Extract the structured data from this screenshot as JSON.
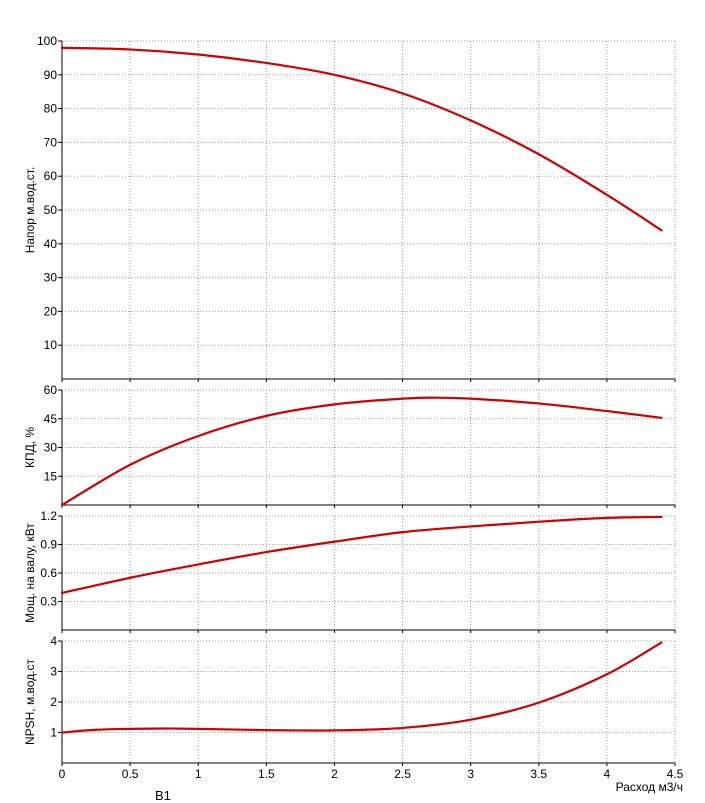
{
  "chart_data": [
    {
      "type": "line",
      "ylabel": "Напор м.вод.ст.",
      "ylim": [
        0,
        100
      ],
      "yticks": [
        10,
        20,
        30,
        40,
        50,
        60,
        70,
        80,
        90,
        100
      ],
      "xlim": [
        0,
        4.5
      ],
      "grid": true,
      "series": [
        {
          "color": "#d00000",
          "x": [
            0,
            0.5,
            1,
            1.5,
            2,
            2.5,
            3,
            3.5,
            4,
            4.4
          ],
          "y": [
            98,
            97.5,
            96,
            93.5,
            90,
            84.5,
            76.5,
            66.5,
            54.5,
            44
          ]
        }
      ]
    },
    {
      "type": "line",
      "ylabel": "КПД, %",
      "ylim": [
        0,
        60
      ],
      "yticks": [
        15,
        30,
        45,
        60
      ],
      "xlim": [
        0,
        4.5
      ],
      "grid": true,
      "series": [
        {
          "color": "#d00000",
          "x": [
            0,
            0.5,
            1,
            1.5,
            2,
            2.5,
            2.75,
            3,
            3.5,
            4,
            4.4
          ],
          "y": [
            0,
            21,
            36,
            46.5,
            52.5,
            55.5,
            56,
            55.5,
            53,
            49,
            45.5
          ]
        }
      ]
    },
    {
      "type": "line",
      "ylabel": "Мощ. на валу, кВт",
      "ylim": [
        0,
        1.2
      ],
      "yticks": [
        0.3,
        0.6,
        0.9,
        1.2
      ],
      "xlim": [
        0,
        4.5
      ],
      "grid": true,
      "series": [
        {
          "color": "#d00000",
          "x": [
            0,
            0.5,
            1,
            1.5,
            2,
            2.5,
            3,
            3.5,
            4,
            4.4
          ],
          "y": [
            0.39,
            0.55,
            0.69,
            0.82,
            0.93,
            1.03,
            1.09,
            1.14,
            1.18,
            1.19
          ]
        }
      ]
    },
    {
      "type": "line",
      "ylabel": "NPSH, м.вод.ст",
      "ylim": [
        0,
        4
      ],
      "yticks": [
        1,
        2,
        3,
        4
      ],
      "xlim": [
        0,
        4.5
      ],
      "xticks": [
        "0",
        "0.5",
        "1",
        "1.5",
        "2",
        "2.5",
        "3",
        "3.5",
        "4",
        "4.5"
      ],
      "xlabel": "Расход м3/ч",
      "grid": true,
      "series": [
        {
          "color": "#d00000",
          "x": [
            0,
            0.25,
            0.5,
            0.75,
            1,
            1.5,
            2,
            2.5,
            3,
            3.5,
            4,
            4.4
          ],
          "y": [
            1.0,
            1.09,
            1.12,
            1.13,
            1.12,
            1.08,
            1.07,
            1.15,
            1.42,
            1.98,
            2.91,
            3.95
          ]
        }
      ]
    }
  ],
  "footer_note": "В1"
}
